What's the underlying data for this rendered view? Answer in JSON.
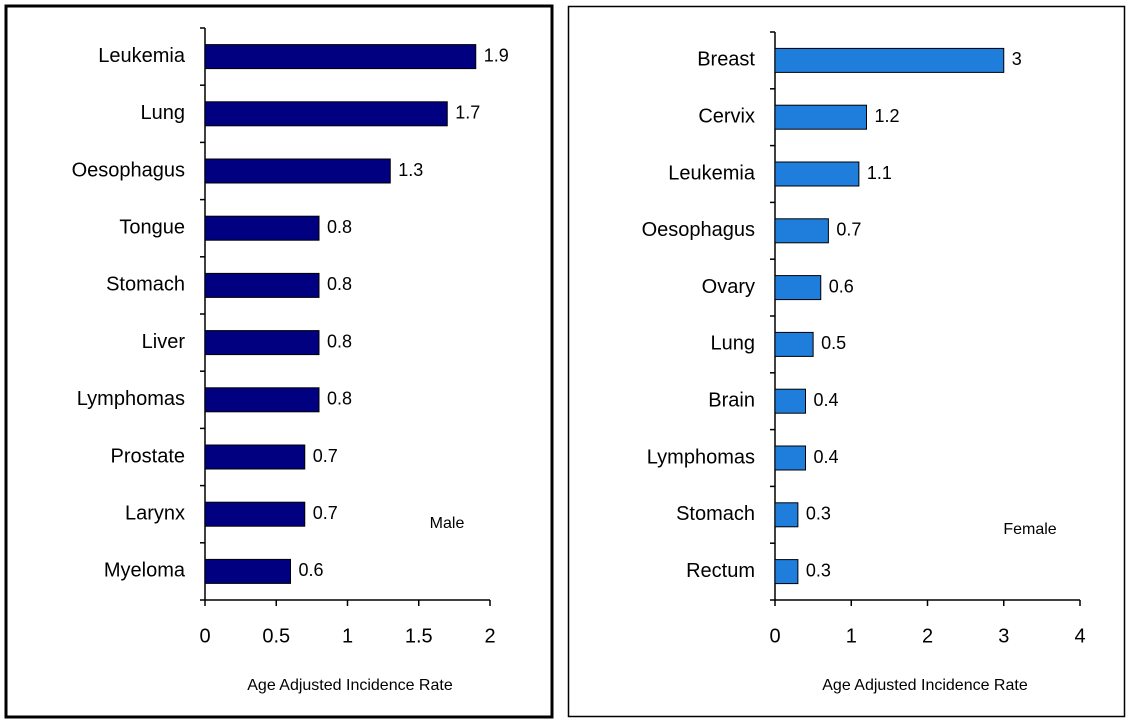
{
  "chart_data": [
    {
      "type": "bar",
      "orientation": "horizontal",
      "color": "#000080",
      "categories": [
        "Leukemia",
        "Lung",
        "Oesophagus",
        "Tongue",
        "Stomach",
        "Liver",
        "Lymphomas",
        "Prostate",
        "Larynx",
        "Myeloma"
      ],
      "values": [
        1.9,
        1.7,
        1.3,
        0.8,
        0.8,
        0.8,
        0.8,
        0.7,
        0.7,
        0.6
      ],
      "xlim": [
        0,
        2
      ],
      "xticks": [
        0,
        0.5,
        1,
        1.5,
        2
      ],
      "x_label": "Age Adjusted Incidence Rate",
      "annotation": "Male"
    },
    {
      "type": "bar",
      "orientation": "horizontal",
      "color": "#1f7ddb",
      "categories": [
        "Breast",
        "Cervix",
        "Leukemia",
        "Oesophagus",
        "Ovary",
        "Lung",
        "Brain",
        "Lymphomas",
        "Stomach",
        "Rectum"
      ],
      "values": [
        3,
        1.2,
        1.1,
        0.7,
        0.6,
        0.5,
        0.4,
        0.4,
        0.3,
        0.3
      ],
      "xlim": [
        0,
        4
      ],
      "xticks": [
        0,
        1,
        2,
        3,
        4
      ],
      "x_label": "Age Adjusted Incidence Rate",
      "annotation": "Female"
    }
  ]
}
